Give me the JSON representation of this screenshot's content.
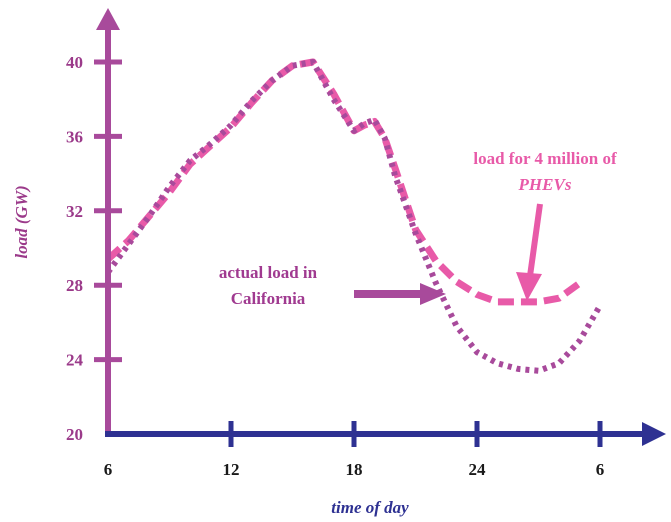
{
  "chart_data": {
    "type": "line",
    "title": "",
    "xlabel": "time of day",
    "ylabel": "load (GW)",
    "ylabel_main": "load",
    "ylabel_unit": "(GW)",
    "x_tick_labels": [
      "6",
      "12",
      "18",
      "24",
      "6"
    ],
    "x_ticks_hours": [
      6,
      12,
      18,
      24,
      30
    ],
    "xlim": [
      6,
      30
    ],
    "y_tick_labels": [
      "20",
      "24",
      "28",
      "32",
      "36",
      "40"
    ],
    "y_ticks": [
      20,
      24,
      28,
      32,
      36,
      40
    ],
    "ylim": [
      20,
      40
    ],
    "grid": false,
    "series": [
      {
        "key": "phev",
        "style": "dashed",
        "color": "#e85aa8",
        "x": [
          6,
          7,
          8,
          9,
          10,
          11,
          12,
          13,
          14,
          15,
          16,
          17,
          18,
          18.5,
          19,
          19.5,
          20,
          21,
          22,
          23,
          24,
          25,
          26,
          27,
          28,
          29
        ],
        "y": [
          29.4,
          30.4,
          31.7,
          33.0,
          34.5,
          35.5,
          36.5,
          37.8,
          39.0,
          39.8,
          40.0,
          38.3,
          36.3,
          36.6,
          36.8,
          35.9,
          34.3,
          31.0,
          29.3,
          28.2,
          27.5,
          27.1,
          27.1,
          27.1,
          27.3,
          28.1
        ]
      },
      {
        "key": "actual",
        "style": "dotted",
        "color": "#a84a9b",
        "x": [
          6,
          7,
          8,
          9,
          10,
          11,
          12,
          13,
          14,
          15,
          16,
          17,
          18,
          18.5,
          19,
          19.5,
          20,
          21,
          22,
          23,
          24,
          25,
          26,
          27,
          28,
          29,
          30
        ],
        "y": [
          28.7,
          30.2,
          31.7,
          33.3,
          34.7,
          35.6,
          36.6,
          37.9,
          39.0,
          39.8,
          40.0,
          38.0,
          36.3,
          36.7,
          36.9,
          35.9,
          33.9,
          30.8,
          28.1,
          25.8,
          24.4,
          23.8,
          23.5,
          23.4,
          23.8,
          25.0,
          26.9
        ]
      }
    ],
    "annotations": [
      {
        "key": "phev",
        "lines": [
          "load for 4 million of",
          "PHEVs"
        ]
      },
      {
        "key": "actual",
        "lines": [
          "actual load in",
          "California"
        ]
      }
    ]
  },
  "colors": {
    "x_axis": "#2e3192",
    "y_axis": "#a84a9b",
    "y_label": "#9b3a8a",
    "phev_text": "#e85aa8",
    "phev_arrow": "#e85aa8",
    "actual_text": "#a03a90",
    "actual_arrow": "#a84a9b",
    "tick_text": "#1a1a1a"
  }
}
